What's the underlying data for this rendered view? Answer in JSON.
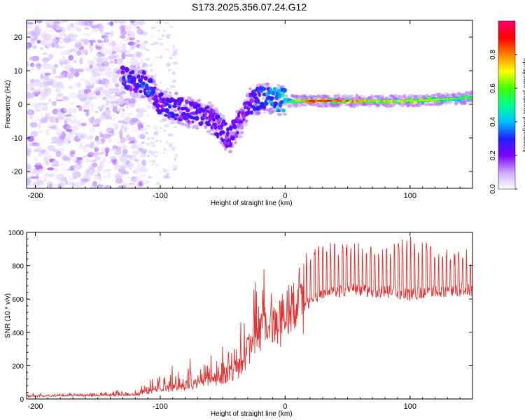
{
  "title": "S173.2025.356.07.24.G12",
  "chart_data": [
    {
      "type": "heatmap",
      "title": "S173.2025.356.07.24.G12",
      "xlabel": "Height of straight line (km)",
      "ylabel": "Frequency (Hz)",
      "xlim": [
        -207,
        150
      ],
      "ylim": [
        -25,
        25
      ],
      "xticks": [
        -200,
        -100,
        0,
        100
      ],
      "yticks": [
        -20,
        -10,
        0,
        10,
        20
      ],
      "colorbar": {
        "label": "Normalized spectral amplitude",
        "range": [
          0.0,
          1.0
        ],
        "ticks": [
          "0.0",
          "0.2",
          "0.4",
          "0.6",
          "0.8"
        ],
        "tick_values": [
          0.0,
          0.2,
          0.4,
          0.6,
          0.8
        ],
        "colors": [
          "#ffffff",
          "#c9a8ff",
          "#8000ff",
          "#2020ff",
          "#00c0ff",
          "#00ff90",
          "#40ff00",
          "#ffff00",
          "#ff8000",
          "#ff0000",
          "#ff0070"
        ]
      },
      "ridge": [
        {
          "x": -130,
          "f": 8,
          "amp": 0.3
        },
        {
          "x": -110,
          "f": 6,
          "amp": 0.35
        },
        {
          "x": -100,
          "f": 0,
          "amp": 0.3
        },
        {
          "x": -80,
          "f": -2,
          "amp": 0.3
        },
        {
          "x": -60,
          "f": -4,
          "amp": 0.3
        },
        {
          "x": -45,
          "f": -10,
          "amp": 0.25
        },
        {
          "x": -35,
          "f": -5,
          "amp": 0.2
        },
        {
          "x": -30,
          "f": 0,
          "amp": 0.25
        },
        {
          "x": -20,
          "f": 2,
          "amp": 0.35
        },
        {
          "x": 0,
          "f": 1,
          "amp": 0.5
        },
        {
          "x": 20,
          "f": 1,
          "amp": 0.9
        },
        {
          "x": 100,
          "f": 1,
          "amp": 0.7
        },
        {
          "x": 150,
          "f": 2,
          "amp": 0.6
        }
      ]
    },
    {
      "type": "line",
      "xlabel": "Height of straight line (km)",
      "ylabel": "SNR (10 * v/v)",
      "xlim": [
        -207,
        150
      ],
      "ylim": [
        0,
        1000
      ],
      "xticks": [
        -200,
        -100,
        0,
        100
      ],
      "yticks": [
        0,
        200,
        400,
        600,
        800,
        1000
      ],
      "series": [
        {
          "name": "SNR",
          "color": "#e03030",
          "x": [
            -207,
            -180,
            -150,
            -120,
            -100,
            -80,
            -60,
            -40,
            -30,
            -25,
            -20,
            -10,
            0,
            10,
            20,
            30,
            50,
            80,
            100,
            120,
            150
          ],
          "base": [
            15,
            20,
            20,
            25,
            50,
            70,
            100,
            130,
            260,
            330,
            380,
            400,
            460,
            520,
            580,
            620,
            650,
            640,
            620,
            640,
            650
          ],
          "peak": [
            30,
            30,
            35,
            60,
            150,
            200,
            250,
            350,
            550,
            700,
            700,
            680,
            720,
            800,
            900,
            920,
            930,
            900,
            960,
            900,
            880
          ]
        }
      ]
    }
  ]
}
